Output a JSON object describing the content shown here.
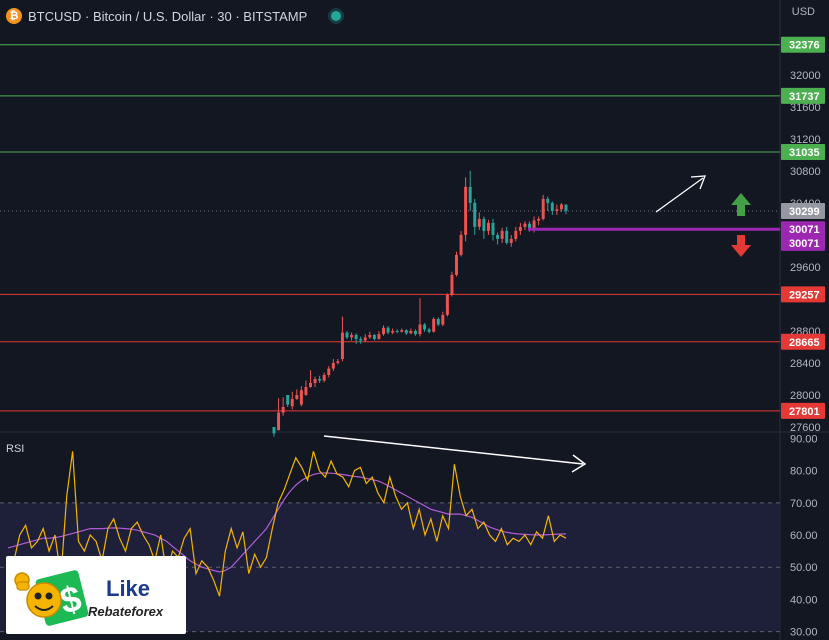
{
  "header": {
    "title": "BTCUSD · Bitcoin / U.S. Dollar · 30 · BITSTAMP",
    "currency": "USD"
  },
  "colors": {
    "background": "#131722",
    "up": "#26a69a",
    "down": "#ef5350",
    "resistance": "#4caf50",
    "support": "#e53935",
    "current_level": "#9c27b0",
    "rsi_line": "#f5b400",
    "rsi_ma": "#b05cd6",
    "arrow": "#ffffff"
  },
  "icons": {
    "symbol": "bitcoin-icon",
    "status": "market-open-dot-icon",
    "up_arrow": "green-up-arrow-icon",
    "down_arrow": "red-down-arrow-icon",
    "logo": "likerebateforex-logo"
  },
  "logo": {
    "line1": "Like",
    "line2": "Rebateforex"
  },
  "chart_data": [
    {
      "type": "candlestick",
      "price_axis": {
        "range": [
          27550,
          32560
        ],
        "ticks": [
          27600,
          28000,
          28400,
          28800,
          29600,
          30400,
          30800,
          31200,
          31600,
          32000
        ]
      },
      "resistance_levels": [
        32376,
        31737,
        31035
      ],
      "support_levels": [
        29257,
        28665,
        27801
      ],
      "current_price": 30299,
      "horizontal_level": 30071,
      "price_labels": [
        {
          "label": "32376",
          "value": 32376,
          "style": "resistance"
        },
        {
          "label": "31737",
          "value": 31737,
          "style": "resistance"
        },
        {
          "label": "31035",
          "value": 31035,
          "style": "resistance"
        },
        {
          "label": "30299",
          "value": 30299,
          "style": "current"
        },
        {
          "label": "30071",
          "value": 30071,
          "style": "level"
        },
        {
          "label": "30071",
          "value": 29900,
          "style": "level"
        },
        {
          "label": "29257",
          "value": 29257,
          "style": "support"
        },
        {
          "label": "28665",
          "value": 28665,
          "style": "support"
        },
        {
          "label": "27801",
          "value": 27801,
          "style": "support"
        }
      ],
      "candles": [
        [
          27520,
          27600,
          27480,
          27600
        ],
        [
          27780,
          27560,
          27960,
          27560
        ],
        [
          27850,
          27780,
          27970,
          27740
        ],
        [
          27880,
          28000,
          27900,
          27850
        ],
        [
          27950,
          27860,
          28040,
          27820
        ],
        [
          28000,
          27950,
          28070,
          27940
        ],
        [
          28060,
          27880,
          28110,
          27860
        ],
        [
          28100,
          28000,
          28180,
          27990
        ],
        [
          28150,
          28100,
          28310,
          28090
        ],
        [
          28200,
          28150,
          28230,
          28100
        ],
        [
          28180,
          28200,
          28240,
          28150
        ],
        [
          28250,
          28180,
          28280,
          28160
        ],
        [
          28330,
          28250,
          28360,
          28220
        ],
        [
          28400,
          28330,
          28450,
          28300
        ],
        [
          28420,
          28400,
          28450,
          28380
        ],
        [
          28780,
          28450,
          28980,
          28420
        ],
        [
          28720,
          28780,
          28800,
          28700
        ],
        [
          28750,
          28720,
          28780,
          28680
        ],
        [
          28700,
          28750,
          28770,
          28640
        ],
        [
          28680,
          28700,
          28730,
          28640
        ],
        [
          28720,
          28680,
          28760,
          28660
        ],
        [
          28750,
          28720,
          28790,
          28700
        ],
        [
          28700,
          28750,
          28760,
          28680
        ],
        [
          28760,
          28700,
          28800,
          28690
        ],
        [
          28840,
          28760,
          28870,
          28740
        ],
        [
          28780,
          28840,
          28860,
          28760
        ],
        [
          28800,
          28780,
          28830,
          28760
        ],
        [
          28790,
          28800,
          28820,
          28770
        ],
        [
          28810,
          28790,
          28830,
          28780
        ],
        [
          28770,
          28810,
          28820,
          28750
        ],
        [
          28800,
          28770,
          28830,
          28760
        ],
        [
          28760,
          28800,
          28820,
          28740
        ],
        [
          28880,
          28760,
          29210,
          28730
        ],
        [
          28820,
          28880,
          28900,
          28790
        ],
        [
          28790,
          28820,
          28840,
          28770
        ],
        [
          28950,
          28790,
          28970,
          28780
        ],
        [
          28880,
          28950,
          28970,
          28860
        ],
        [
          29000,
          28880,
          29040,
          28860
        ],
        [
          29250,
          29000,
          29270,
          28980
        ],
        [
          29500,
          29250,
          29540,
          29230
        ],
        [
          29750,
          29500,
          29790,
          29480
        ],
        [
          30000,
          29750,
          30050,
          29730
        ],
        [
          30600,
          30000,
          30720,
          29920
        ],
        [
          30400,
          30600,
          30800,
          30300
        ],
        [
          30100,
          30400,
          30450,
          30000
        ],
        [
          30200,
          30100,
          30280,
          30060
        ],
        [
          30050,
          30200,
          30230,
          29950
        ],
        [
          30150,
          30050,
          30190,
          30000
        ],
        [
          30000,
          30150,
          30200,
          29930
        ],
        [
          29950,
          30000,
          30030,
          29880
        ],
        [
          30050,
          29950,
          30090,
          29900
        ],
        [
          29900,
          30050,
          30100,
          29880
        ],
        [
          29950,
          29900,
          30000,
          29850
        ],
        [
          30050,
          29950,
          30100,
          29920
        ],
        [
          30100,
          30050,
          30150,
          30000
        ],
        [
          30140,
          30100,
          30170,
          30060
        ],
        [
          30080,
          30140,
          30170,
          30040
        ],
        [
          30180,
          30080,
          30230,
          30030
        ],
        [
          30200,
          30180,
          30230,
          30120
        ],
        [
          30450,
          30200,
          30500,
          30180
        ],
        [
          30400,
          30450,
          30480,
          30300
        ],
        [
          30300,
          30400,
          30420,
          30250
        ],
        [
          30320,
          30300,
          30380,
          30250
        ],
        [
          30380,
          30320,
          30400,
          30290
        ],
        [
          30300,
          30380,
          30380,
          30260
        ]
      ]
    },
    {
      "type": "line",
      "title": "RSI",
      "y_axis": {
        "range": [
          28,
          92
        ],
        "ticks": [
          30,
          40,
          50,
          60,
          70,
          80,
          90
        ]
      },
      "overbought": 70,
      "oversold": 30,
      "midline": 50,
      "rsi_values": [
        48,
        52,
        60,
        63,
        56,
        58,
        62,
        55,
        60,
        47,
        72,
        86,
        58,
        55,
        60,
        58,
        52,
        62,
        65,
        59,
        55,
        62,
        64,
        60,
        57,
        52,
        60,
        48,
        55,
        53,
        59,
        62,
        48,
        52,
        50,
        46,
        41,
        55,
        62,
        56,
        61,
        48,
        54,
        50,
        53,
        62,
        70,
        74,
        79,
        84,
        81,
        77,
        86,
        80,
        78,
        83,
        79,
        78,
        75,
        80,
        81,
        76,
        78,
        73,
        70,
        78,
        72,
        68,
        70,
        62,
        68,
        60,
        65,
        58,
        66,
        62,
        82,
        72,
        66,
        68,
        62,
        64,
        60,
        58,
        62,
        57,
        59,
        58,
        60,
        57,
        61,
        59,
        66,
        58,
        60,
        59
      ],
      "rsi_ma_values": [
        56,
        56.5,
        57,
        57.5,
        58,
        58.5,
        59,
        59,
        59.2,
        59.5,
        60,
        60.5,
        61,
        61.5,
        62,
        62,
        62,
        62.1,
        62.2,
        62.1,
        62,
        61.8,
        61.5,
        61,
        60.5,
        60,
        59,
        58,
        56.5,
        55,
        53.5,
        52,
        51,
        50,
        49.5,
        49,
        48.5,
        49,
        50,
        52,
        54,
        56,
        58,
        60,
        62,
        65,
        68,
        71,
        73.5,
        75.5,
        77,
        78,
        78.8,
        79.2,
        79.3,
        79.2,
        79,
        78.8,
        78.5,
        78.2,
        78,
        77.6,
        77.2,
        76.8,
        76,
        75,
        74,
        73,
        72,
        71,
        70,
        69,
        68,
        67.5,
        67,
        66.5,
        66.5,
        66.5,
        66,
        65.5,
        64.5,
        63.5,
        62.5,
        61.8,
        61.2,
        60.8,
        60.5,
        60.3,
        60.2,
        60.1,
        60,
        60,
        60.1,
        60.2,
        60.3,
        60.3
      ]
    }
  ]
}
